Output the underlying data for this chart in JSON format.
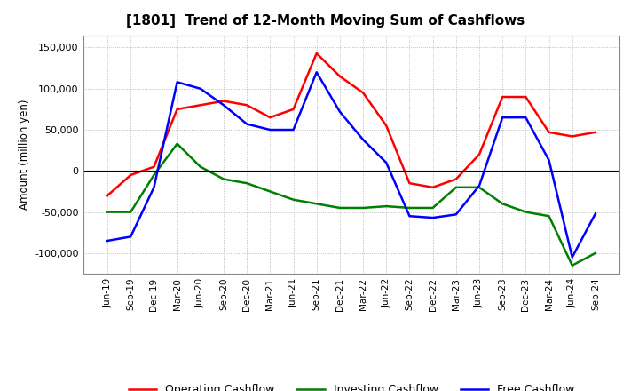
{
  "title": "[1801]  Trend of 12-Month Moving Sum of Cashflows",
  "ylabel": "Amount (million yen)",
  "ylim": [
    -125000,
    165000
  ],
  "yticks": [
    -100000,
    -50000,
    0,
    50000,
    100000,
    150000
  ],
  "labels": [
    "Jun-19",
    "Sep-19",
    "Dec-19",
    "Mar-20",
    "Jun-20",
    "Sep-20",
    "Dec-20",
    "Mar-21",
    "Jun-21",
    "Sep-21",
    "Dec-21",
    "Mar-22",
    "Jun-22",
    "Sep-22",
    "Dec-22",
    "Mar-23",
    "Jun-23",
    "Sep-23",
    "Dec-23",
    "Mar-24",
    "Jun-24",
    "Sep-24"
  ],
  "operating": [
    -30000,
    -5000,
    5000,
    75000,
    80000,
    85000,
    80000,
    65000,
    75000,
    143000,
    115000,
    95000,
    55000,
    -15000,
    -20000,
    -10000,
    20000,
    90000,
    90000,
    47000,
    42000,
    47000
  ],
  "investing": [
    -50000,
    -50000,
    -5000,
    33000,
    5000,
    -10000,
    -15000,
    -25000,
    -35000,
    -40000,
    -45000,
    -45000,
    -43000,
    -45000,
    -45000,
    -20000,
    -20000,
    -40000,
    -50000,
    -55000,
    -115000,
    -100000
  ],
  "free": [
    -85000,
    -80000,
    -20000,
    108000,
    100000,
    80000,
    57000,
    50000,
    50000,
    120000,
    72000,
    38000,
    10000,
    -55000,
    -57000,
    -53000,
    -18000,
    65000,
    65000,
    13000,
    -105000,
    -52000
  ],
  "operating_color": "#ff0000",
  "investing_color": "#008000",
  "free_color": "#0000ff",
  "grid_color": "#aaaaaa",
  "background_color": "#ffffff"
}
